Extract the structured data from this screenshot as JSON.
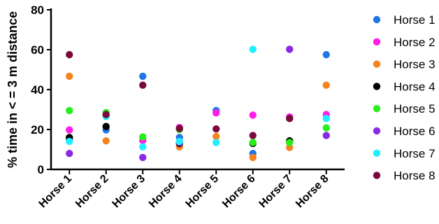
{
  "chart_data": {
    "type": "scatter",
    "title": "",
    "xlabel": "",
    "ylabel": "% time in < = 3 m distance",
    "categories": [
      "Horse 1",
      "Horse 2",
      "Horse 3",
      "Horse 4",
      "Horse 5",
      "Horse 6",
      "Horse 7",
      "Horse 8"
    ],
    "ylim": [
      0,
      80
    ],
    "yticks": [
      0,
      20,
      40,
      60,
      80
    ],
    "grid": false,
    "legend_position": "right",
    "series": [
      {
        "name": "Horse 1",
        "color": "#1f77e6",
        "values": [
          15.0,
          19.8,
          46.7,
          16.0,
          29.5,
          8.0,
          null,
          57.5
        ]
      },
      {
        "name": "Horse 2",
        "color": "#ff1ee8",
        "values": [
          19.8,
          27.0,
          14.5,
          21.0,
          28.3,
          27.2,
          26.3,
          27.5
        ]
      },
      {
        "name": "Horse 3",
        "color": "#f7831e",
        "values": [
          46.7,
          14.3,
          null,
          11.3,
          16.5,
          6.0,
          11.0,
          42.2
        ]
      },
      {
        "name": "Horse 4",
        "color": "#000000",
        "values": [
          16.0,
          21.5,
          null,
          13.0,
          null,
          13.0,
          14.3,
          null
        ]
      },
      {
        "name": "Horse 5",
        "color": "#27ef1a",
        "values": [
          29.5,
          28.5,
          16.3,
          20.0,
          null,
          13.5,
          13.5,
          20.8
        ]
      },
      {
        "name": "Horse 6",
        "color": "#8a2be2",
        "values": [
          8.0,
          null,
          6.0,
          13.5,
          null,
          null,
          60.2,
          17.0
        ]
      },
      {
        "name": "Horse 7",
        "color": "#1ef0ff",
        "values": [
          14.0,
          26.5,
          11.3,
          14.0,
          13.5,
          60.2,
          null,
          25.5
        ]
      },
      {
        "name": "Horse 8",
        "color": "#7a0a3e",
        "values": [
          57.5,
          27.5,
          42.2,
          20.5,
          20.3,
          17.0,
          25.5,
          null
        ]
      }
    ]
  }
}
